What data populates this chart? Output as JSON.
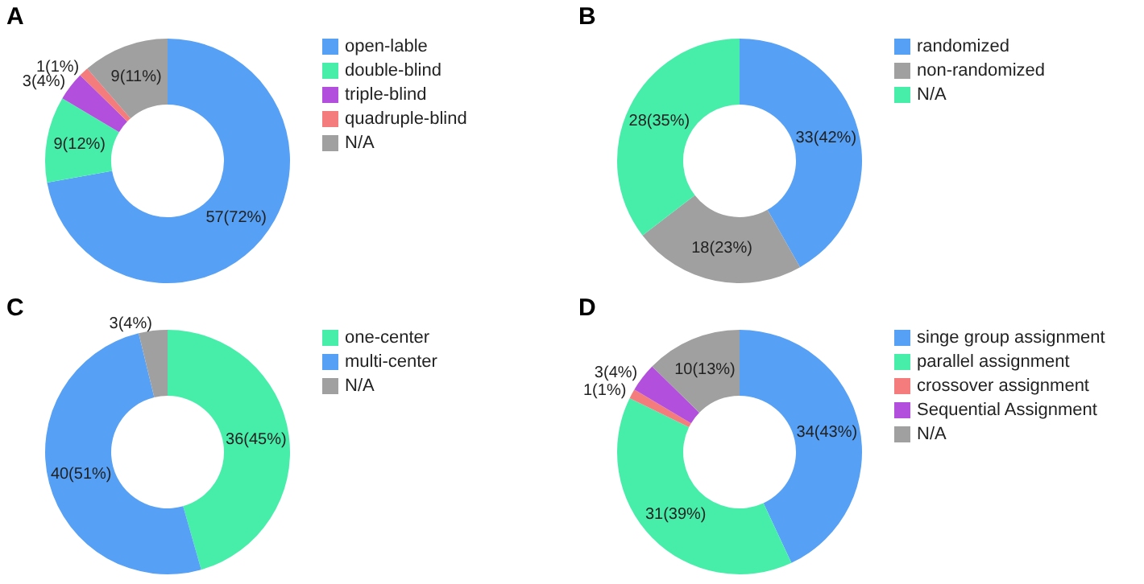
{
  "chart_data": [
    {
      "type": "donut",
      "title": "A",
      "categories": [
        "open-lable",
        "double-blind",
        "triple-blind",
        "quadruple-blind",
        "N/A"
      ],
      "values": [
        57,
        9,
        3,
        1,
        9
      ],
      "colors": [
        "#56a0f5",
        "#47eeaa",
        "#b24fdd",
        "#f47c7c",
        "#a0a0a0"
      ],
      "value_labels": [
        "57(72%)",
        "9(12%)",
        "3(4%)",
        "1(1%)",
        "9(11%)"
      ],
      "legend": "right"
    },
    {
      "type": "donut",
      "title": "B",
      "categories": [
        "randomized",
        "non-randomized",
        "N/A"
      ],
      "values": [
        33,
        18,
        28
      ],
      "colors": [
        "#56a0f5",
        "#a0a0a0",
        "#47eeaa"
      ],
      "value_labels": [
        "33(42%)",
        "18(23%)",
        "28(35%)"
      ],
      "legend": "right"
    },
    {
      "type": "donut",
      "title": "C",
      "categories": [
        "one-center",
        "multi-center",
        "N/A"
      ],
      "values": [
        36,
        40,
        3
      ],
      "colors": [
        "#47eeaa",
        "#56a0f5",
        "#a0a0a0"
      ],
      "value_labels": [
        "36(45%)",
        "40(51%)",
        "3(4%)"
      ],
      "legend": "right"
    },
    {
      "type": "donut",
      "title": "D",
      "categories": [
        "singe group assignment",
        "parallel assignment",
        "crossover assignment",
        "Sequential Assignment",
        "N/A"
      ],
      "values": [
        34,
        31,
        1,
        3,
        10
      ],
      "colors": [
        "#56a0f5",
        "#47eeaa",
        "#f47c7c",
        "#b24fdd",
        "#a0a0a0"
      ],
      "value_labels": [
        "34(43%)",
        "31(39%)",
        "1(1%)",
        "3(4%)",
        "10(13%)"
      ],
      "legend": "right"
    }
  ]
}
